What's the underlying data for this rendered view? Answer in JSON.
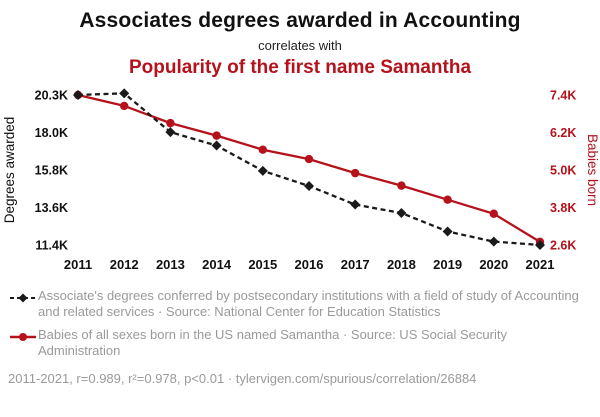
{
  "colors": {
    "accent": "#b5121b",
    "black_series": "#1a1a1a",
    "muted_text": "#9a9a9a"
  },
  "title": {
    "main": "Associates degrees awarded in Accounting",
    "connector": "correlates with",
    "sub": "Popularity of the first name Samantha"
  },
  "chart_data": {
    "type": "line",
    "x": [
      2011,
      2012,
      2013,
      2014,
      2015,
      2016,
      2017,
      2018,
      2019,
      2020,
      2021
    ],
    "series": [
      {
        "name": "Associate's degrees conferred in Accounting and related services",
        "axis": "left",
        "style": "dashed-diamond",
        "values": [
          20300,
          20400,
          18100,
          17300,
          15800,
          14900,
          13800,
          13300,
          12200,
          11600,
          11400
        ]
      },
      {
        "name": "Babies of all sexes born in the US named Samantha",
        "axis": "right",
        "style": "solid-circle",
        "values": [
          7400,
          7050,
          6500,
          6100,
          5650,
          5350,
          4900,
          4500,
          4050,
          3600,
          2700
        ]
      }
    ],
    "left_axis": {
      "label": "Degrees awarded",
      "min": 11400,
      "max": 20300,
      "ticks": [
        {
          "label": "20.3K",
          "value": 20300
        },
        {
          "label": "18.0K",
          "value": 18075
        },
        {
          "label": "15.8K",
          "value": 15850
        },
        {
          "label": "13.6K",
          "value": 13625
        },
        {
          "label": "11.4K",
          "value": 11400
        }
      ]
    },
    "right_axis": {
      "label": "Babies born",
      "min": 2600,
      "max": 7400,
      "ticks": [
        {
          "label": "7.4K",
          "value": 7400
        },
        {
          "label": "6.2K",
          "value": 6200
        },
        {
          "label": "5.0K",
          "value": 5000
        },
        {
          "label": "3.8K",
          "value": 3800
        },
        {
          "label": "2.6K",
          "value": 2600
        }
      ]
    },
    "grid": false,
    "legend_position": "below"
  },
  "legend": [
    {
      "text": "Associate's degrees conferred by postsecondary institutions with a field of study of Accounting and related services · Source: National Center for Education Statistics"
    },
    {
      "text": "Babies of all sexes born in the US named Samantha · Source: US Social Security Administration"
    }
  ],
  "footer": {
    "text": "2011-2021, r=0.989, r²=0.978, p<0.01 · tylervigen.com/spurious/correlation/26884"
  }
}
